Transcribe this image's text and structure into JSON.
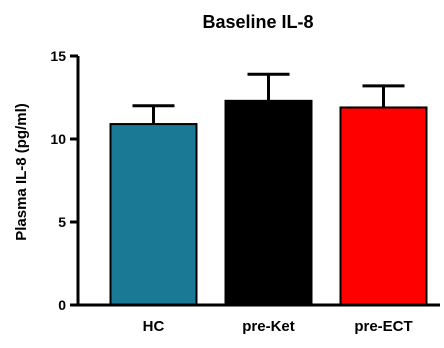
{
  "chart_data": {
    "type": "bar",
    "title": "Baseline IL-8",
    "xlabel": "",
    "ylabel": "Plasma IL-8 (pg/ml)",
    "ylim": [
      0,
      15
    ],
    "yticks": [
      0,
      5,
      10,
      15
    ],
    "grid": false,
    "legend": "none",
    "categories": [
      "HC",
      "pre-Ket",
      "pre-ECT"
    ],
    "values": [
      10.9,
      12.3,
      11.9
    ],
    "error_upper": [
      1.1,
      1.6,
      1.3
    ],
    "colors": [
      "#1a7a96",
      "#000000",
      "#ff0000"
    ]
  }
}
